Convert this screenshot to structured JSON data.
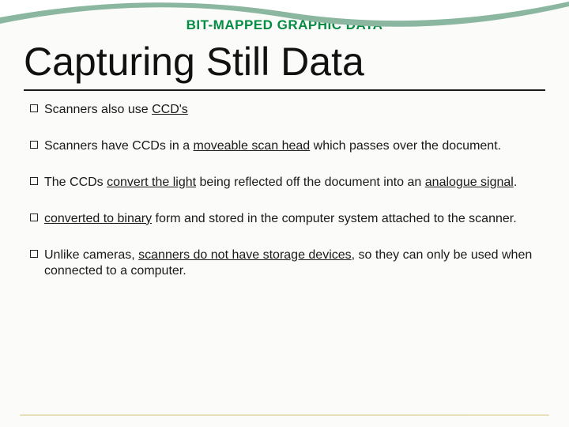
{
  "header": {
    "text": "BIT-MAPPED GRAPHIC DATA",
    "color": "#058c43",
    "fontsize": 17
  },
  "title": {
    "text": "Capturing Still Data",
    "fontsize": 50,
    "underline_color": "#1c1c1c"
  },
  "wave": {
    "outer_color": "#8bb69f",
    "inner_color": "#ffffff"
  },
  "bullets": [
    {
      "pre": "Scanners also use ",
      "u1": "CCD's",
      "mid": "",
      "u2": "",
      "post": ""
    },
    {
      "pre": "Scanners have CCDs in a ",
      "u1": "moveable scan head",
      "mid": " which passes over the document.",
      "u2": "",
      "post": ""
    },
    {
      "pre": "The CCDs ",
      "u1": "convert the light",
      "mid": " being reflected off the document into an ",
      "u2": "analogue signal",
      "post": "."
    },
    {
      "pre": "",
      "u1": "converted to binary",
      "mid": " form and stored in the computer system attached to the scanner.",
      "u2": "",
      "post": ""
    },
    {
      "pre": "Unlike cameras, ",
      "u1": "scanners do not have storage devices",
      "mid": ", so they can only be used when connected to a computer.",
      "u2": "",
      "post": ""
    }
  ],
  "style": {
    "background": "#fbfbfa",
    "text_color": "#1a1a1a",
    "bullet_fontsize": 16,
    "bottom_rule_color": "#e7dfb8"
  }
}
